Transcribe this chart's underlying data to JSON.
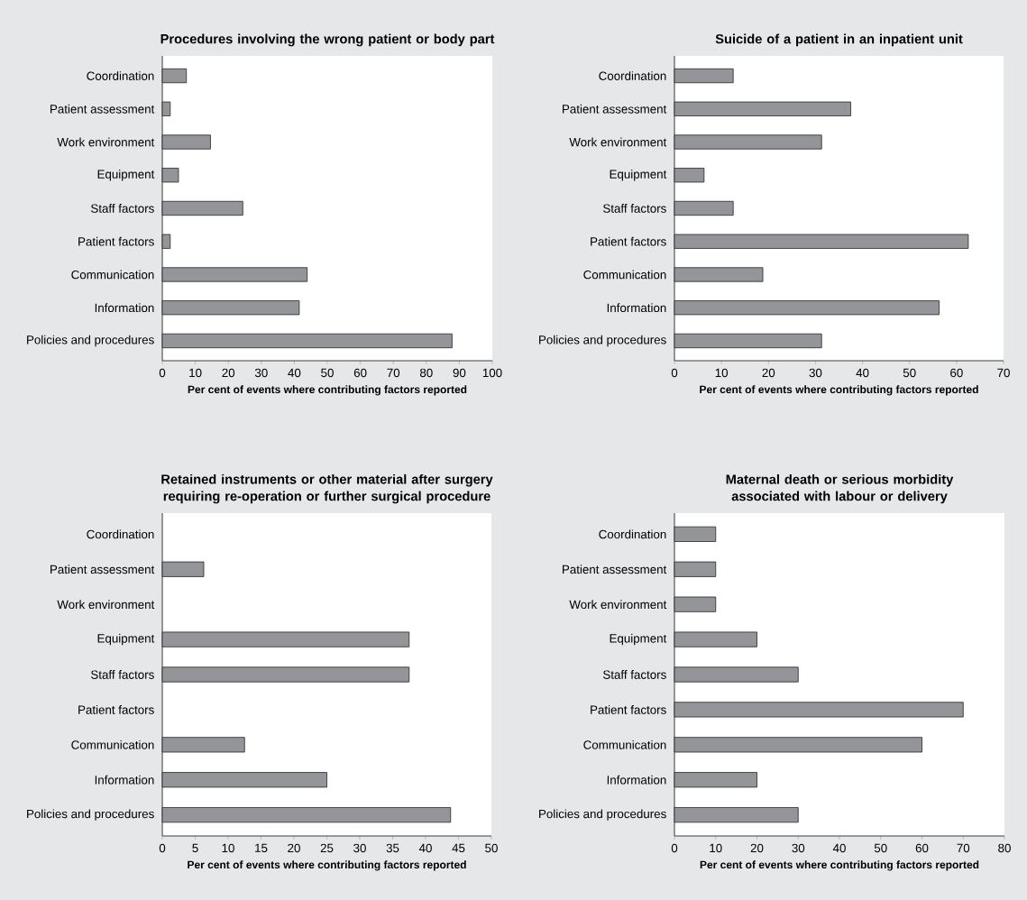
{
  "chart_data": [
    {
      "type": "bar",
      "orientation": "horizontal",
      "title": "Procedures involving the wrong patient or body part",
      "xlabel": "Per cent of events where contributing factors reported",
      "categories": [
        "Coordination",
        "Patient assessment",
        "Work environment",
        "Equipment",
        "Staff factors",
        "Patient factors",
        "Communication",
        "Information",
        "Policies and procedures"
      ],
      "values": [
        7.3,
        2.4,
        14.6,
        4.9,
        24.4,
        2.4,
        43.9,
        41.5,
        87.8
      ],
      "color": "#939598",
      "xlim": [
        0,
        100
      ],
      "xticks": [
        0,
        10,
        20,
        30,
        40,
        50,
        60,
        70,
        80,
        90,
        100
      ]
    },
    {
      "type": "bar",
      "orientation": "horizontal",
      "title": "Suicide of a patient in an inpatient unit",
      "xlabel": "Per cent of events where contributing factors reported",
      "categories": [
        "Coordination",
        "Patient assessment",
        "Work environment",
        "Equipment",
        "Staff factors",
        "Patient factors",
        "Communication",
        "Information",
        "Policies and procedures"
      ],
      "values": [
        12.5,
        37.5,
        31.3,
        6.3,
        12.5,
        62.5,
        18.8,
        56.3,
        31.3
      ],
      "color": "#939598",
      "xlim": [
        0,
        70
      ],
      "xticks": [
        0,
        10,
        20,
        30,
        40,
        50,
        60,
        70
      ]
    },
    {
      "type": "bar",
      "orientation": "horizontal",
      "title": "Retained instruments or other material after surgery requiring re-operation or further surgical procedure",
      "xlabel": "Per cent of events where contributing factors reported",
      "categories": [
        "Coordination",
        "Patient assessment",
        "Work environment",
        "Equipment",
        "Staff factors",
        "Patient factors",
        "Communication",
        "Information",
        "Policies and procedures"
      ],
      "values": [
        null,
        6.3,
        null,
        37.5,
        37.5,
        null,
        12.5,
        25,
        43.8
      ],
      "color": "#939598",
      "xlim": [
        0,
        50
      ],
      "xticks": [
        0,
        5,
        10,
        15,
        20,
        25,
        30,
        35,
        40,
        45,
        50
      ]
    },
    {
      "type": "bar",
      "orientation": "horizontal",
      "title": "Maternal death or serious morbidity associated with labour or delivery",
      "xlabel": "Per cent of events where contributing factors reported",
      "categories": [
        "Coordination",
        "Patient assessment",
        "Work environment",
        "Equipment",
        "Staff factors",
        "Patient factors",
        "Communication",
        "Information",
        "Policies and procedures"
      ],
      "values": [
        10,
        10,
        10,
        20,
        30,
        70,
        60,
        20,
        30
      ],
      "color": "#939598",
      "xlim": [
        0,
        80
      ],
      "xticks": [
        0,
        10,
        20,
        30,
        40,
        50,
        60,
        70,
        80
      ]
    }
  ]
}
